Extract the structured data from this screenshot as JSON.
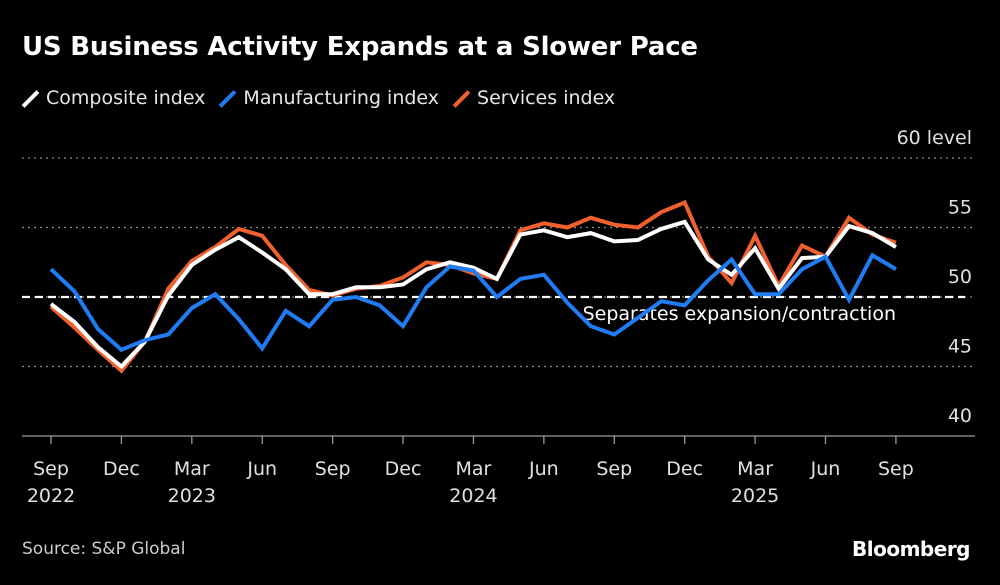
{
  "title": "US Business Activity Expands at a Slower Pace",
  "source": "Source: S&P Global",
  "logo": "Bloomberg",
  "chart_data": {
    "type": "line",
    "title": "US Business Activity Expands at a Slower Pace",
    "legend_position": "top-left",
    "x": [
      "2022-09",
      "2022-10",
      "2022-11",
      "2022-12",
      "2023-01",
      "2023-02",
      "2023-03",
      "2023-04",
      "2023-05",
      "2023-06",
      "2023-07",
      "2023-08",
      "2023-09",
      "2023-10",
      "2023-11",
      "2023-12",
      "2024-01",
      "2024-02",
      "2024-03",
      "2024-04",
      "2024-05",
      "2024-06",
      "2024-07",
      "2024-08",
      "2024-09",
      "2024-10",
      "2024-11",
      "2024-12",
      "2025-01",
      "2025-02",
      "2025-03",
      "2025-04",
      "2025-05",
      "2025-06",
      "2025-07",
      "2025-08",
      "2025-09"
    ],
    "x_ticks": [
      {
        "month": "Sep",
        "year": "2022"
      },
      {
        "month": "Dec",
        "year": ""
      },
      {
        "month": "Mar",
        "year": "2023"
      },
      {
        "month": "Jun",
        "year": ""
      },
      {
        "month": "Sep",
        "year": ""
      },
      {
        "month": "Dec",
        "year": ""
      },
      {
        "month": "Mar",
        "year": "2024"
      },
      {
        "month": "Jun",
        "year": ""
      },
      {
        "month": "Sep",
        "year": ""
      },
      {
        "month": "Dec",
        "year": ""
      },
      {
        "month": "Mar",
        "year": "2025"
      },
      {
        "month": "Jun",
        "year": ""
      },
      {
        "month": "Sep",
        "year": ""
      }
    ],
    "y_ticks": [
      "40",
      "45",
      "50",
      "55",
      "60 level"
    ],
    "ylim": [
      40,
      60
    ],
    "grid": true,
    "reference_line": {
      "value": 50,
      "label": "Separates expansion/contraction"
    },
    "series": [
      {
        "name": "Composite index",
        "color": "#ffffff",
        "values": [
          49.5,
          48.2,
          46.4,
          45.0,
          46.8,
          50.1,
          52.3,
          53.4,
          54.3,
          53.2,
          52.0,
          50.2,
          50.2,
          50.7,
          50.7,
          50.9,
          52.0,
          52.5,
          52.1,
          51.3,
          54.5,
          54.8,
          54.3,
          54.6,
          54.0,
          54.1,
          54.9,
          55.4,
          52.7,
          51.6,
          53.5,
          50.6,
          52.8,
          52.9,
          55.1,
          54.6,
          53.6
        ]
      },
      {
        "name": "Manufacturing index",
        "color": "#1f7cf2",
        "values": [
          52.0,
          50.4,
          47.7,
          46.2,
          46.9,
          47.3,
          49.2,
          50.2,
          48.4,
          46.3,
          49.0,
          47.9,
          49.8,
          50.0,
          49.4,
          47.9,
          50.7,
          52.2,
          51.9,
          50.0,
          51.3,
          51.6,
          49.6,
          47.9,
          47.3,
          48.5,
          49.7,
          49.4,
          51.2,
          52.7,
          50.2,
          50.2,
          52.0,
          52.9,
          49.8,
          53.0,
          52.0
        ]
      },
      {
        "name": "Services index",
        "color": "#f0602f",
        "values": [
          49.3,
          47.8,
          46.2,
          44.7,
          46.8,
          50.6,
          52.6,
          53.6,
          54.9,
          54.4,
          52.3,
          50.5,
          50.1,
          50.6,
          50.8,
          51.4,
          52.5,
          52.3,
          51.7,
          51.3,
          54.8,
          55.3,
          55.0,
          55.7,
          55.2,
          55.0,
          56.1,
          56.8,
          52.9,
          51.0,
          54.4,
          50.8,
          53.7,
          52.9,
          55.7,
          54.5,
          53.9
        ]
      }
    ]
  }
}
